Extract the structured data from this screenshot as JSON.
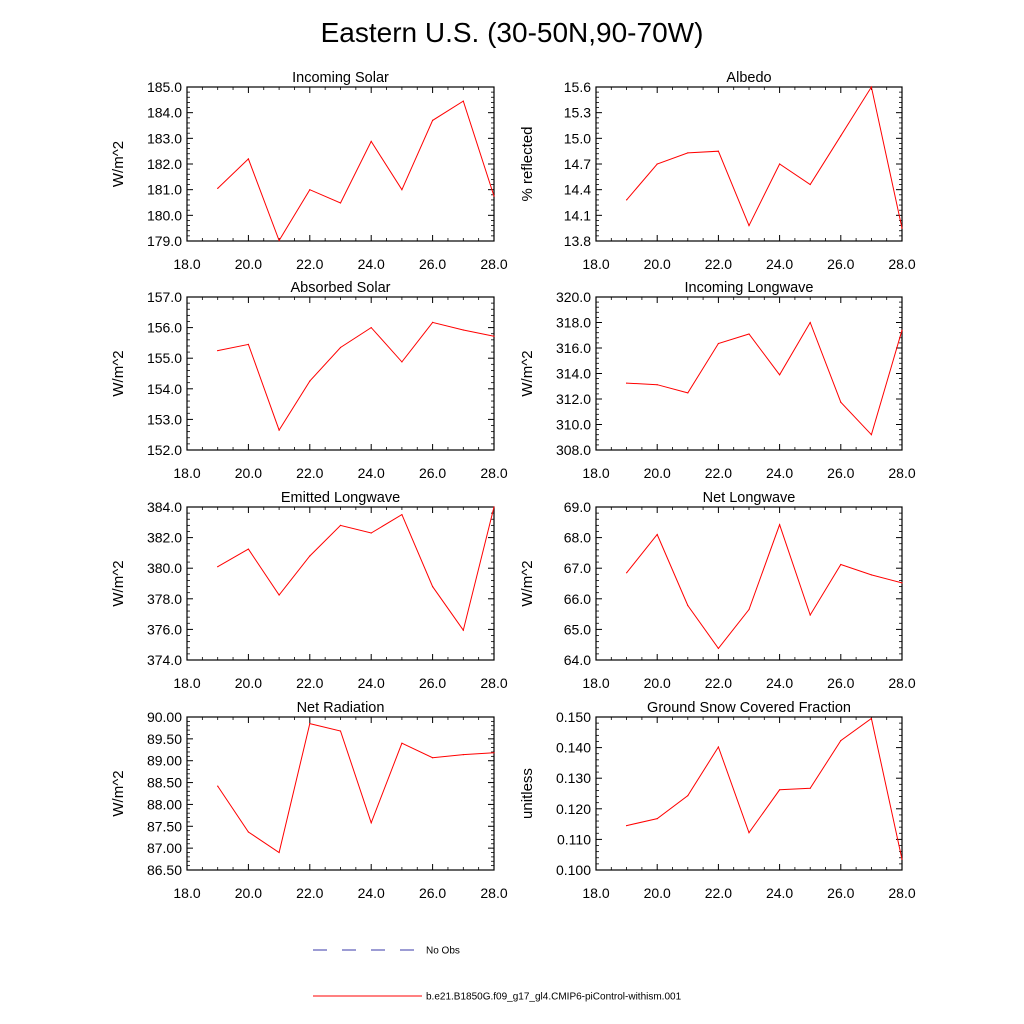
{
  "title": "Eastern U.S. (30-50N,90-70W)",
  "chart_data": [
    {
      "type": "line",
      "title": "Incoming Solar",
      "ylabel": "W/m^2",
      "xlim": [
        18,
        28
      ],
      "ylim": [
        179,
        185
      ],
      "xticks": [
        "18.0",
        "20.0",
        "22.0",
        "24.0",
        "26.0",
        "28.0"
      ],
      "yticks": [
        "179.0",
        "180.0",
        "181.0",
        "182.0",
        "183.0",
        "184.0",
        "185.0"
      ],
      "series": [
        {
          "name": "b.e21.B1850G.f09_g17_gl4.CMIP6-piControl-withism.001",
          "x": [
            19,
            20,
            21,
            22,
            23,
            24,
            25,
            26,
            27,
            28
          ],
          "values": [
            181.05,
            182.2,
            179.02,
            181.0,
            180.48,
            182.88,
            181.0,
            183.7,
            184.45,
            180.75
          ]
        }
      ]
    },
    {
      "type": "line",
      "title": "Albedo",
      "ylabel": "% reflected",
      "xlim": [
        18,
        28
      ],
      "ylim": [
        13.8,
        15.6
      ],
      "xticks": [
        "18.0",
        "20.0",
        "22.0",
        "24.0",
        "26.0",
        "28.0"
      ],
      "yticks": [
        "13.8",
        "14.1",
        "14.4",
        "14.7",
        "15.0",
        "15.3",
        "15.6"
      ],
      "series": [
        {
          "name": "b.e21.B1850G.f09_g17_gl4.CMIP6-piControl-withism.001",
          "x": [
            19,
            20,
            21,
            22,
            23,
            24,
            25,
            26,
            27,
            28
          ],
          "values": [
            14.28,
            14.7,
            14.83,
            14.85,
            13.98,
            14.7,
            14.46,
            15.03,
            15.6,
            13.95
          ]
        }
      ]
    },
    {
      "type": "line",
      "title": "Absorbed Solar",
      "ylabel": "W/m^2",
      "xlim": [
        18,
        28
      ],
      "ylim": [
        152,
        157
      ],
      "xticks": [
        "18.0",
        "20.0",
        "22.0",
        "24.0",
        "26.0",
        "28.0"
      ],
      "yticks": [
        "152.0",
        "153.0",
        "154.0",
        "155.0",
        "156.0",
        "157.0"
      ],
      "series": [
        {
          "name": "b.e21.B1850G.f09_g17_gl4.CMIP6-piControl-withism.001",
          "x": [
            19,
            20,
            21,
            22,
            23,
            24,
            25,
            26,
            27,
            28
          ],
          "values": [
            155.25,
            155.45,
            152.65,
            154.25,
            155.35,
            156.0,
            154.88,
            156.17,
            155.92,
            155.72
          ]
        }
      ]
    },
    {
      "type": "line",
      "title": "Incoming Longwave",
      "ylabel": "W/m^2",
      "xlim": [
        18,
        28
      ],
      "ylim": [
        308,
        320
      ],
      "xticks": [
        "18.0",
        "20.0",
        "22.0",
        "24.0",
        "26.0",
        "28.0"
      ],
      "yticks": [
        "308.0",
        "310.0",
        "312.0",
        "314.0",
        "316.0",
        "318.0",
        "320.0"
      ],
      "series": [
        {
          "name": "b.e21.B1850G.f09_g17_gl4.CMIP6-piControl-withism.001",
          "x": [
            19,
            20,
            21,
            22,
            23,
            24,
            25,
            26,
            27,
            28
          ],
          "values": [
            313.25,
            313.12,
            312.48,
            316.35,
            317.1,
            313.9,
            318.0,
            311.75,
            309.2,
            317.4
          ]
        }
      ]
    },
    {
      "type": "line",
      "title": "Emitted Longwave",
      "ylabel": "W/m^2",
      "xlim": [
        18,
        28
      ],
      "ylim": [
        374,
        384
      ],
      "xticks": [
        "18.0",
        "20.0",
        "22.0",
        "24.0",
        "26.0",
        "28.0"
      ],
      "yticks": [
        "374.0",
        "376.0",
        "378.0",
        "380.0",
        "382.0",
        "384.0"
      ],
      "series": [
        {
          "name": "b.e21.B1850G.f09_g17_gl4.CMIP6-piControl-withism.001",
          "x": [
            19,
            20,
            21,
            22,
            23,
            24,
            25,
            26,
            27,
            28
          ],
          "values": [
            380.1,
            381.25,
            378.25,
            380.8,
            382.8,
            382.3,
            383.5,
            378.8,
            375.95,
            384.0
          ]
        }
      ]
    },
    {
      "type": "line",
      "title": "Net Longwave",
      "ylabel": "W/m^2",
      "xlim": [
        18,
        28
      ],
      "ylim": [
        64,
        69
      ],
      "xticks": [
        "18.0",
        "20.0",
        "22.0",
        "24.0",
        "26.0",
        "28.0"
      ],
      "yticks": [
        "64.0",
        "65.0",
        "66.0",
        "67.0",
        "68.0",
        "69.0"
      ],
      "series": [
        {
          "name": "b.e21.B1850G.f09_g17_gl4.CMIP6-piControl-withism.001",
          "x": [
            19,
            20,
            21,
            22,
            23,
            24,
            25,
            26,
            27,
            28
          ],
          "values": [
            66.85,
            68.1,
            65.78,
            64.38,
            65.65,
            68.42,
            65.47,
            67.12,
            66.78,
            66.52
          ]
        }
      ]
    },
    {
      "type": "line",
      "title": "Net Radiation",
      "ylabel": "W/m^2",
      "xlim": [
        18,
        28
      ],
      "ylim": [
        86.5,
        90.0
      ],
      "xticks": [
        "18.0",
        "20.0",
        "22.0",
        "24.0",
        "26.0",
        "28.0"
      ],
      "yticks": [
        "86.50",
        "87.00",
        "87.50",
        "88.00",
        "88.50",
        "89.00",
        "89.50",
        "90.00"
      ],
      "series": [
        {
          "name": "b.e21.B1850G.f09_g17_gl4.CMIP6-piControl-withism.001",
          "x": [
            19,
            20,
            21,
            22,
            23,
            24,
            25,
            26,
            27,
            28
          ],
          "values": [
            88.42,
            87.37,
            86.9,
            89.85,
            89.68,
            87.58,
            89.4,
            89.07,
            89.14,
            89.18
          ]
        }
      ]
    },
    {
      "type": "line",
      "title": "Ground Snow Covered Fraction",
      "ylabel": "unitless",
      "xlim": [
        18,
        28
      ],
      "ylim": [
        0.1,
        0.15
      ],
      "xticks": [
        "18.0",
        "20.0",
        "22.0",
        "24.0",
        "26.0",
        "28.0"
      ],
      "yticks": [
        "0.100",
        "0.110",
        "0.120",
        "0.130",
        "0.140",
        "0.150"
      ],
      "series": [
        {
          "name": "b.e21.B1850G.f09_g17_gl4.CMIP6-piControl-withism.001",
          "x": [
            19,
            20,
            21,
            22,
            23,
            24,
            25,
            26,
            27,
            28
          ],
          "values": [
            0.1145,
            0.1168,
            0.1243,
            0.1402,
            0.1122,
            0.1262,
            0.1267,
            0.1423,
            0.1495,
            0.1035
          ]
        }
      ]
    }
  ],
  "legend": [
    {
      "label": "No Obs",
      "color": "#3a3aa8",
      "style": "dashed"
    },
    {
      "label": "b.e21.B1850G.f09_g17_gl4.CMIP6-piControl-withism.001",
      "color": "#ff0000",
      "style": "solid"
    }
  ]
}
